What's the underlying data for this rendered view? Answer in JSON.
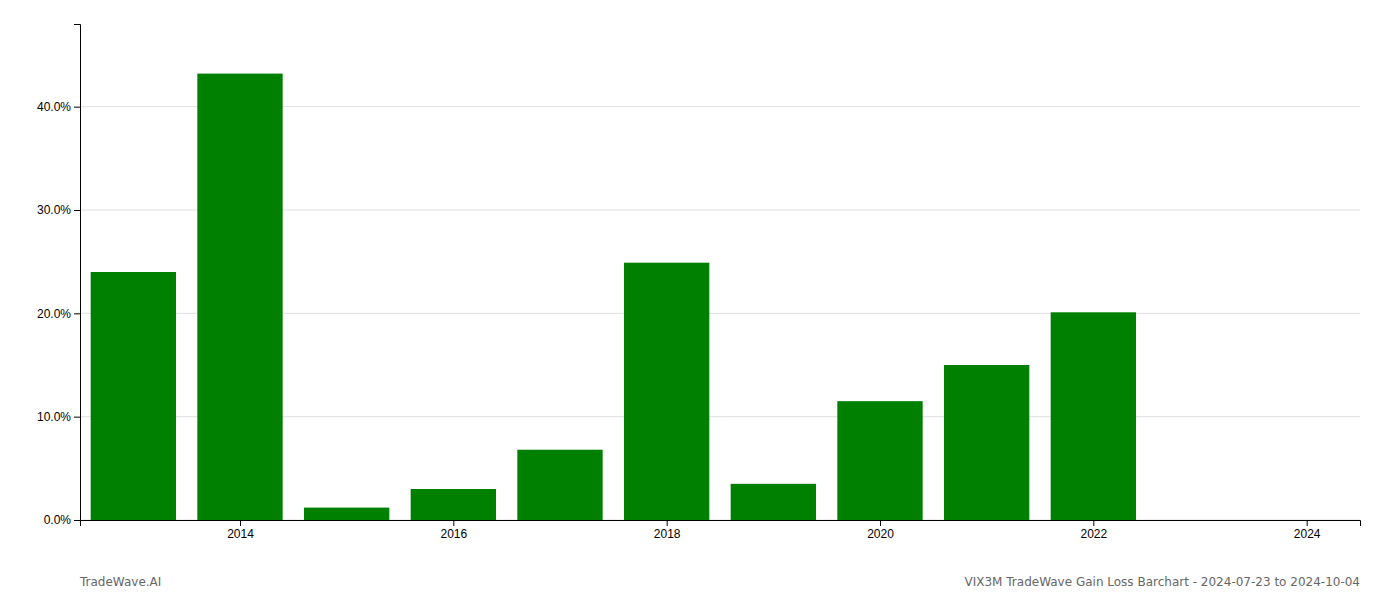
{
  "chart_data": {
    "type": "bar",
    "x": [
      2013,
      2014,
      2015,
      2016,
      2017,
      2018,
      2019,
      2020,
      2021,
      2022,
      2023
    ],
    "values": [
      0.24,
      0.432,
      0.012,
      0.03,
      0.068,
      0.249,
      0.035,
      0.115,
      0.15,
      0.201,
      0.0
    ],
    "color": "#008000",
    "xlim": [
      2012.5,
      2024.5
    ],
    "xticks": [
      2014,
      2016,
      2018,
      2020,
      2022,
      2024
    ],
    "ylim": [
      0,
      0.48
    ],
    "yticks": [
      {
        "value": 0,
        "label": "0.0%"
      },
      {
        "value": 0.1,
        "label": "10.0%"
      },
      {
        "value": 0.2,
        "label": "20.0%"
      },
      {
        "value": 0.3,
        "label": "30.0%"
      },
      {
        "value": 0.4,
        "label": "40.0%"
      }
    ],
    "grid": true,
    "annotations": [
      "TradeWave.AI",
      "VIX3M TradeWave Gain Loss Barchart - 2024-07-23 to 2024-10-04"
    ]
  }
}
